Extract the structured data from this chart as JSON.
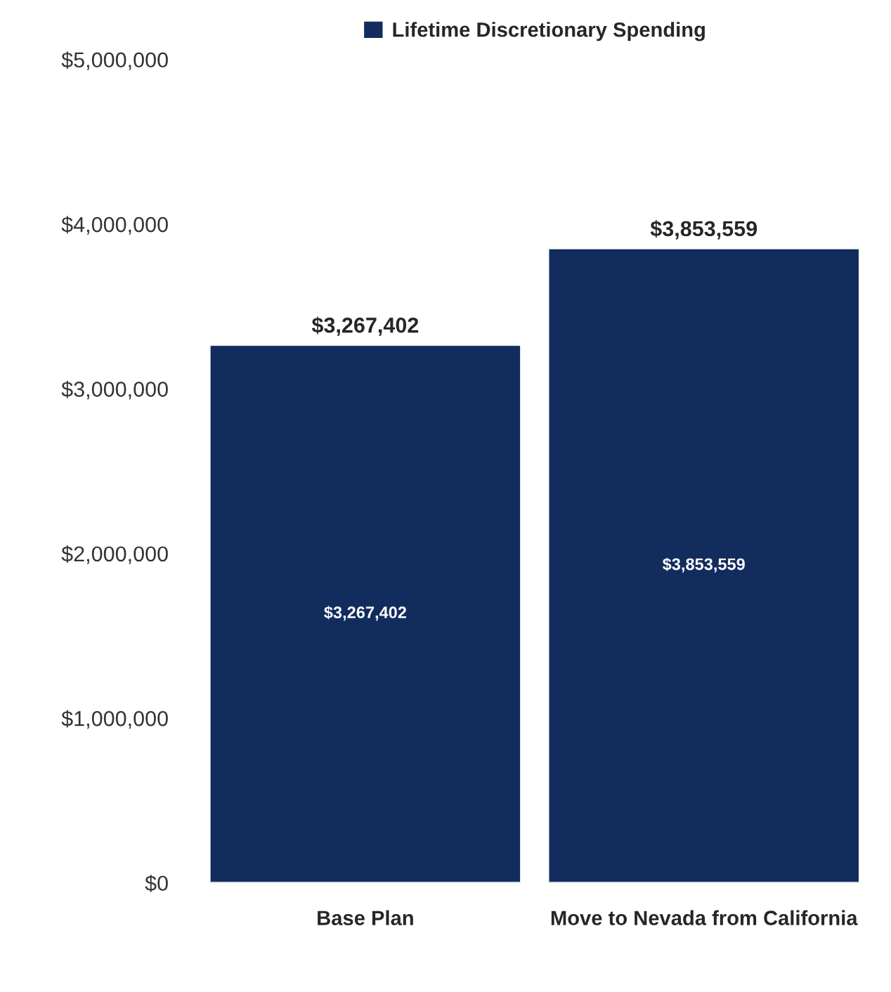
{
  "chart_data": {
    "type": "bar",
    "categories": [
      "Base Plan",
      "Move to Nevada from California"
    ],
    "series": [
      {
        "name": "Lifetime Discretionary Spending",
        "color": "#132c5e",
        "values": [
          3267402,
          3853559
        ],
        "value_labels": [
          "$3,267,402",
          "$3,853,559"
        ]
      }
    ],
    "ylim": [
      0,
      5000000
    ],
    "yticks": [
      {
        "value": 0,
        "label": "$0"
      },
      {
        "value": 1000000,
        "label": "$1,000,000"
      },
      {
        "value": 2000000,
        "label": "$2,000,000"
      },
      {
        "value": 3000000,
        "label": "$3,000,000"
      },
      {
        "value": 4000000,
        "label": "$4,000,000"
      },
      {
        "value": 5000000,
        "label": "$5,000,000"
      }
    ],
    "legend": "top",
    "grid": false
  }
}
